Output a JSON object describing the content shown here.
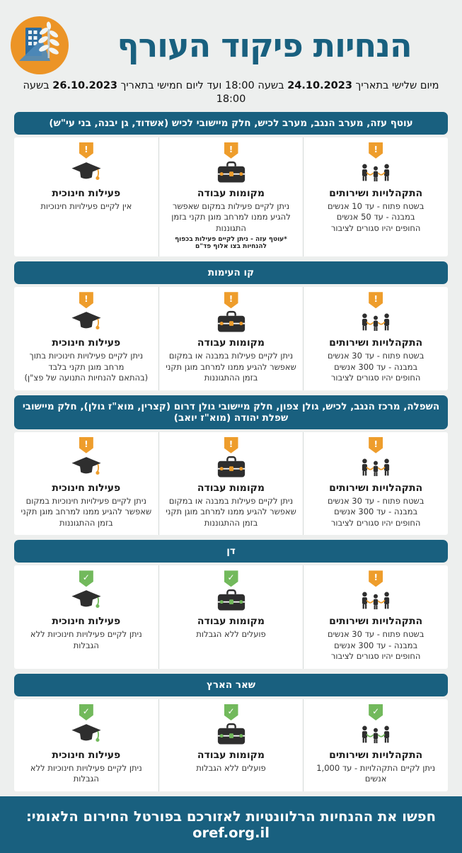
{
  "page": {
    "title": "הנחיות פיקוד העורף",
    "subtitle": {
      "t1": "מיום שלישי בתאריך ",
      "date_from": "24.10.2023",
      "t2": " בשעה 18:00 ועד ליום חמישי בתאריך ",
      "date_to": "26.10.2023",
      "t3": " בשעה 18:00"
    },
    "footer": "חפשו את ההנחיות הרלוונטיות לאזורכם בפורטל החירום הלאומי: oref.org.il"
  },
  "colors": {
    "teal": "#19607f",
    "orange": "#ee9d2c",
    "green": "#72b95c",
    "background": "#edefee"
  },
  "badge_glyphs": {
    "warning": "!",
    "ok": "✓"
  },
  "sections": [
    {
      "title": "עוטף עזה, מערב הנגב, מערב לכיש, חלק מיישובי לכיש (אשדוד, גן יבנה, בני עי\"ש)",
      "cards": [
        {
          "name": "gatherings",
          "icon": "people-queue-icon",
          "status": "warning",
          "heading": "התקהלויות ושירותים",
          "body": "בשטח פתוח - עד 10 אנשים\nבמבנה - עד 50 אנשים\nהחופים יהיו סגורים לציבור",
          "footnote": ""
        },
        {
          "name": "workplaces",
          "icon": "briefcase-icon",
          "status": "warning",
          "heading": "מקומות עבודה",
          "body": "ניתן לקיים פעילות במקום שאפשר להגיע ממנו למרחב מוגן תקני בזמן התגוננות",
          "footnote": "*עוטף עזה - ניתן לקיים פעילות בכפוף להנחיות בצו אלוף פד\"ם"
        },
        {
          "name": "education",
          "icon": "graduation-cap-icon",
          "status": "warning",
          "heading": "פעילות חינוכית",
          "body": "אין לקיים פעילויות חינוכיות",
          "footnote": ""
        }
      ]
    },
    {
      "title": "קו העימות",
      "cards": [
        {
          "name": "gatherings",
          "icon": "people-queue-icon",
          "status": "warning",
          "heading": "התקהלויות ושירותים",
          "body": "בשטח פתוח - עד 30 אנשים\nבמבנה - עד 300 אנשים\nהחופים יהיו סגורים לציבור",
          "footnote": ""
        },
        {
          "name": "workplaces",
          "icon": "briefcase-icon",
          "status": "warning",
          "heading": "מקומות עבודה",
          "body": "ניתן לקיים פעילות במבנה או במקום שאפשר להגיע ממנו למרחב מוגן תקני בזמן ההתגוננות",
          "footnote": ""
        },
        {
          "name": "education",
          "icon": "graduation-cap-icon",
          "status": "warning",
          "heading": "פעילות חינוכית",
          "body": "ניתן לקיים פעילויות חינוכיות בתוך מרחב מוגן תקני בלבד\n(בהתאם להנחיות התנועה של פצ\"ן)",
          "footnote": ""
        }
      ]
    },
    {
      "title": "השפלה, מרכז הנגב, לכיש, גולן צפון, חלק מיישובי גולן דרום (קצרין, מוא\"ז גולן), חלק מיישובי שפלת יהודה (מוא\"ז יואב)",
      "cards": [
        {
          "name": "gatherings",
          "icon": "people-queue-icon",
          "status": "warning",
          "heading": "התקהלויות ושירותים",
          "body": "בשטח פתוח - עד 30 אנשים\nבמבנה - עד 300 אנשים\nהחופים יהיו סגורים לציבור",
          "footnote": ""
        },
        {
          "name": "workplaces",
          "icon": "briefcase-icon",
          "status": "warning",
          "heading": "מקומות עבודה",
          "body": "ניתן לקיים פעילות במבנה או במקום שאפשר להגיע ממנו למרחב מוגן תקני בזמן ההתגוננות",
          "footnote": ""
        },
        {
          "name": "education",
          "icon": "graduation-cap-icon",
          "status": "warning",
          "heading": "פעילות חינוכית",
          "body": "ניתן לקיים פעילויות חינוכיות במקום שאפשר להגיע ממנו למרחב מוגן תקני בזמן ההתגוננות",
          "footnote": ""
        }
      ]
    },
    {
      "title": "דן",
      "cards": [
        {
          "name": "gatherings",
          "icon": "people-queue-icon",
          "status": "warning",
          "heading": "התקהלויות ושירותים",
          "body": "בשטח פתוח - עד 30 אנשים\nבמבנה - עד 300 אנשים\nהחופים יהיו סגורים לציבור",
          "footnote": ""
        },
        {
          "name": "workplaces",
          "icon": "briefcase-icon",
          "status": "ok",
          "heading": "מקומות עבודה",
          "body": "פועלים ללא הגבלות",
          "footnote": ""
        },
        {
          "name": "education",
          "icon": "graduation-cap-icon",
          "status": "ok",
          "heading": "פעילות חינוכית",
          "body": "ניתן לקיים פעילויות חינוכיות ללא הגבלות",
          "footnote": ""
        }
      ]
    },
    {
      "title": "שאר הארץ",
      "cards": [
        {
          "name": "gatherings",
          "icon": "people-queue-icon",
          "status": "ok",
          "heading": "התקהלויות ושירותים",
          "body": "ניתן לקיים התקהלויות - עד 1,000 אנשים",
          "footnote": ""
        },
        {
          "name": "workplaces",
          "icon": "briefcase-icon",
          "status": "ok",
          "heading": "מקומות עבודה",
          "body": "פועלים ללא הגבלות",
          "footnote": ""
        },
        {
          "name": "education",
          "icon": "graduation-cap-icon",
          "status": "ok",
          "heading": "פעילות חינוכית",
          "body": "ניתן לקיים פעילויות חינוכיות ללא הגבלות",
          "footnote": ""
        }
      ]
    }
  ]
}
